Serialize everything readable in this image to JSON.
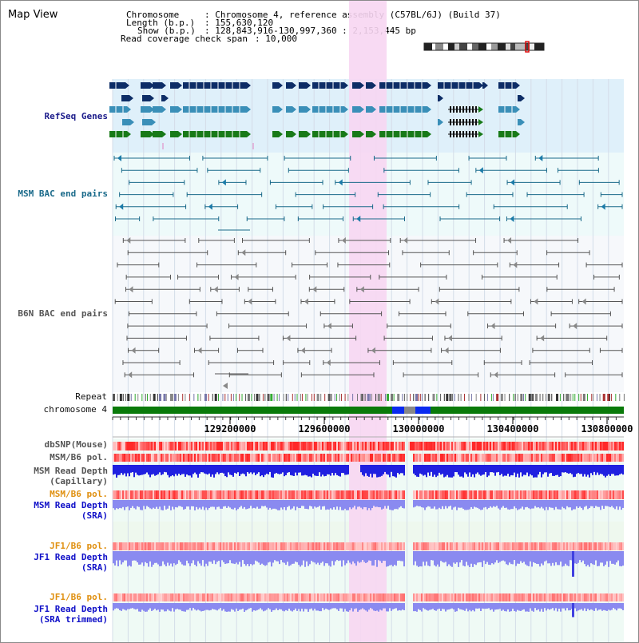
{
  "window": {
    "title": "Map View"
  },
  "info": {
    "chromosome_label": "Chromosome",
    "chromosome_value": ": Chromosome 4, reference assembly (C57BL/6J) (Build 37)",
    "length_label": "Length (b.p.)",
    "length_value": ": 155,630,120",
    "show_label": "Show (b.p.)",
    "show_value": ": 128,843,916-130,997,360 : 2,153,445 bp",
    "coverage_label": "Read coverage check span",
    "coverage_value": ": 10,000"
  },
  "tracks": {
    "refseq": "RefSeq Genes",
    "msm_bac": "MSM BAC end pairs",
    "b6n_bac": "B6N BAC end pairs",
    "repeat": "Repeat",
    "chromosome": "chromosome 4"
  },
  "axis": {
    "ticks": [
      "129200000",
      "129600000",
      "130000000",
      "130400000",
      "130800000"
    ]
  },
  "data_tracks": {
    "dbsnp": "dbSNP(Mouse)",
    "msm_b6_pol": "MSM/B6 pol.",
    "msm_depth_cap_1": "MSM Read Depth",
    "msm_depth_cap_2": "(Capillary)",
    "msm_b6_pol_2": "MSM/B6 pol.",
    "msm_depth_sra_1": "MSM Read Depth",
    "msm_depth_sra_2": "(SRA)",
    "jf1_b6_pol": "JF1/B6 pol.",
    "jf1_depth_sra_1": "JF1 Read Depth",
    "jf1_depth_sra_2": "(SRA)",
    "jf1_b6_pol_2": "JF1/B6 pol.",
    "jf1_depth_trim_1": "JF1 Read Depth",
    "jf1_depth_trim_2": "(SRA trimmed)"
  },
  "colors": {
    "refseq_bg": "#dff0fa",
    "bac_bg": "#eefafa",
    "highlight": "#f7d6f2",
    "refseq_dark": "#0d2d66",
    "refseq_mid": "#3a8fb8",
    "refseq_green": "#187a18",
    "chromosome_bar": "#0a7a0a",
    "gap_blue": "#0a2af0",
    "snp_red": "#e83a3a",
    "depth_blue": "#2020e0",
    "depth_lavender": "#8a8af0"
  }
}
